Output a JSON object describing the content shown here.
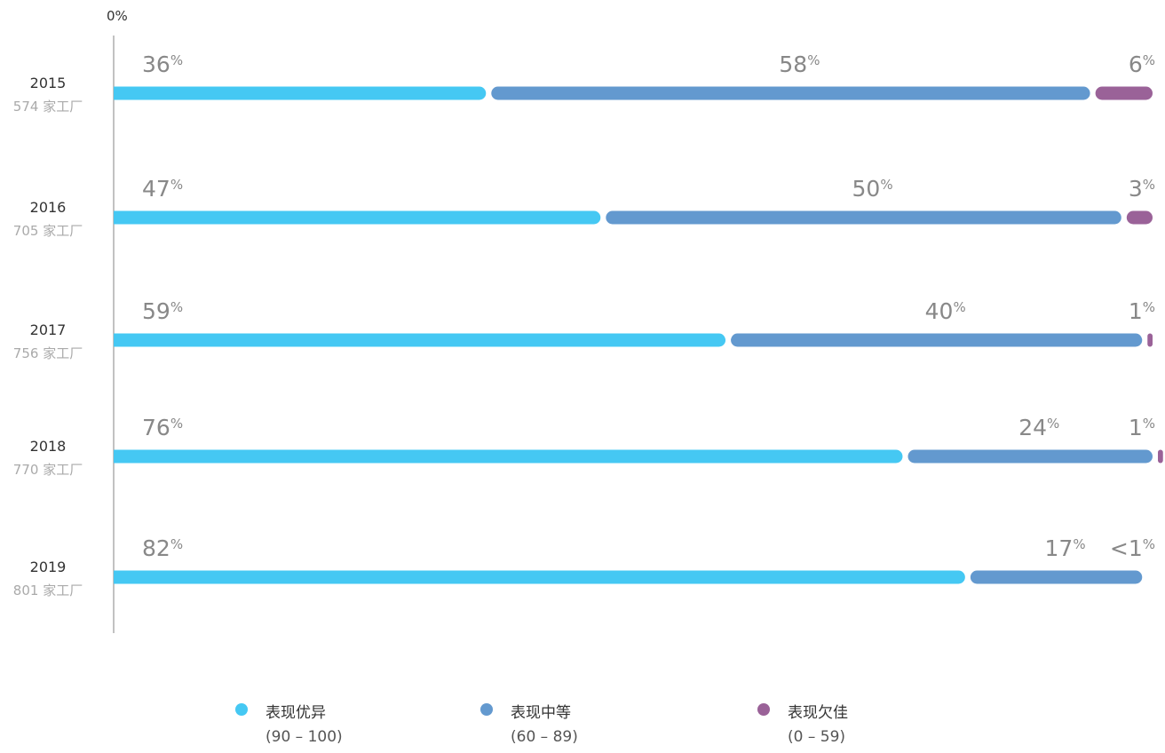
{
  "chart_data": {
    "type": "bar",
    "orientation": "horizontal-stacked",
    "axis_start_label": "0%",
    "categories": [
      "2015",
      "2016",
      "2017",
      "2018",
      "2019"
    ],
    "category_sublabels": [
      "574 家工厂",
      "705 家工厂",
      "756 家工厂",
      "770 家工厂",
      "801 家工厂"
    ],
    "percent_symbol": "%",
    "series": [
      {
        "name": "表现优异",
        "range": "(90 – 100)",
        "color": "#45c8f3",
        "values": [
          36,
          47,
          59,
          76,
          82
        ],
        "labels": [
          "36",
          "47",
          "59",
          "76",
          "82"
        ]
      },
      {
        "name": "表现中等",
        "range": "(60 – 89)",
        "color": "#6399cf",
        "values": [
          58,
          50,
          40,
          24,
          17
        ],
        "labels": [
          "58",
          "50",
          "40",
          "24",
          "17"
        ]
      },
      {
        "name": "表现欠佳",
        "range": "(0 – 59)",
        "color": "#9a6298",
        "values": [
          6,
          3,
          1,
          1,
          0.5
        ],
        "labels": [
          "6",
          "3",
          "1",
          "1",
          "<1"
        ]
      }
    ],
    "xlim": [
      0,
      100
    ],
    "legend_position": "bottom"
  }
}
